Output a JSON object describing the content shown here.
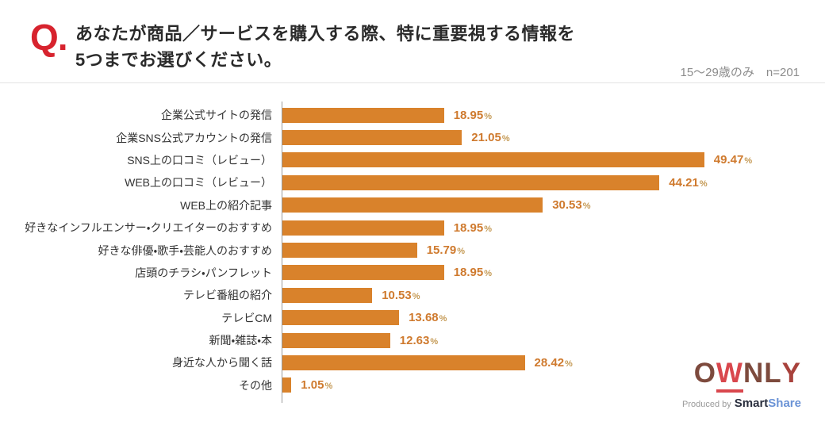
{
  "header": {
    "q_mark": "Q.",
    "title_line1": "あなたが商品／サービスを購入する際、特に重要視する情報を",
    "title_line2": "5つまでお選びください。",
    "subtitle": "15〜29歳のみ　n=201"
  },
  "chart_data": {
    "type": "bar",
    "orientation": "horizontal",
    "title": "あなたが商品／サービスを購入する際、特に重要視する情報を5つまでお選びください。",
    "sample_note": "15〜29歳のみ n=201",
    "categories": [
      "企業公式サイトの発信",
      "企業SNS公式アカウントの発信",
      "SNS上の口コミ（レビュー）",
      "WEB上の口コミ（レビュー）",
      "WEB上の紹介記事",
      "好きなインフルエンサー・クリエイターのおすすめ",
      "好きな俳優・歌手・芸能人のおすすめ",
      "店頭のチラシ・パンフレット",
      "テレビ番組の紹介",
      "テレビCM",
      "新聞・雑誌・本",
      "身近な人から聞く話",
      "その他"
    ],
    "values": [
      18.95,
      21.05,
      49.47,
      44.21,
      30.53,
      18.95,
      15.79,
      18.95,
      10.53,
      13.68,
      12.63,
      28.42,
      1.05
    ],
    "value_suffix": "%",
    "xlim": [
      0,
      55
    ],
    "grid": false,
    "legend": false,
    "bar_color": "#d9822b",
    "value_label_color": "#cf7a2e",
    "accent_color": "#d7232e"
  },
  "footer": {
    "logo_letters": [
      {
        "ch": "O",
        "color": "#7d4a3d",
        "underline": false
      },
      {
        "ch": "W",
        "color": "#d9474d",
        "underline": true
      },
      {
        "ch": "N",
        "color": "#7d4a3d",
        "underline": false
      },
      {
        "ch": "L",
        "color": "#7d4a3d",
        "underline": false
      },
      {
        "ch": "Y",
        "color": "#a8423c",
        "underline": false
      }
    ],
    "produced_by": "Produced by",
    "brand_smart": "Smart",
    "brand_share": "Share"
  }
}
